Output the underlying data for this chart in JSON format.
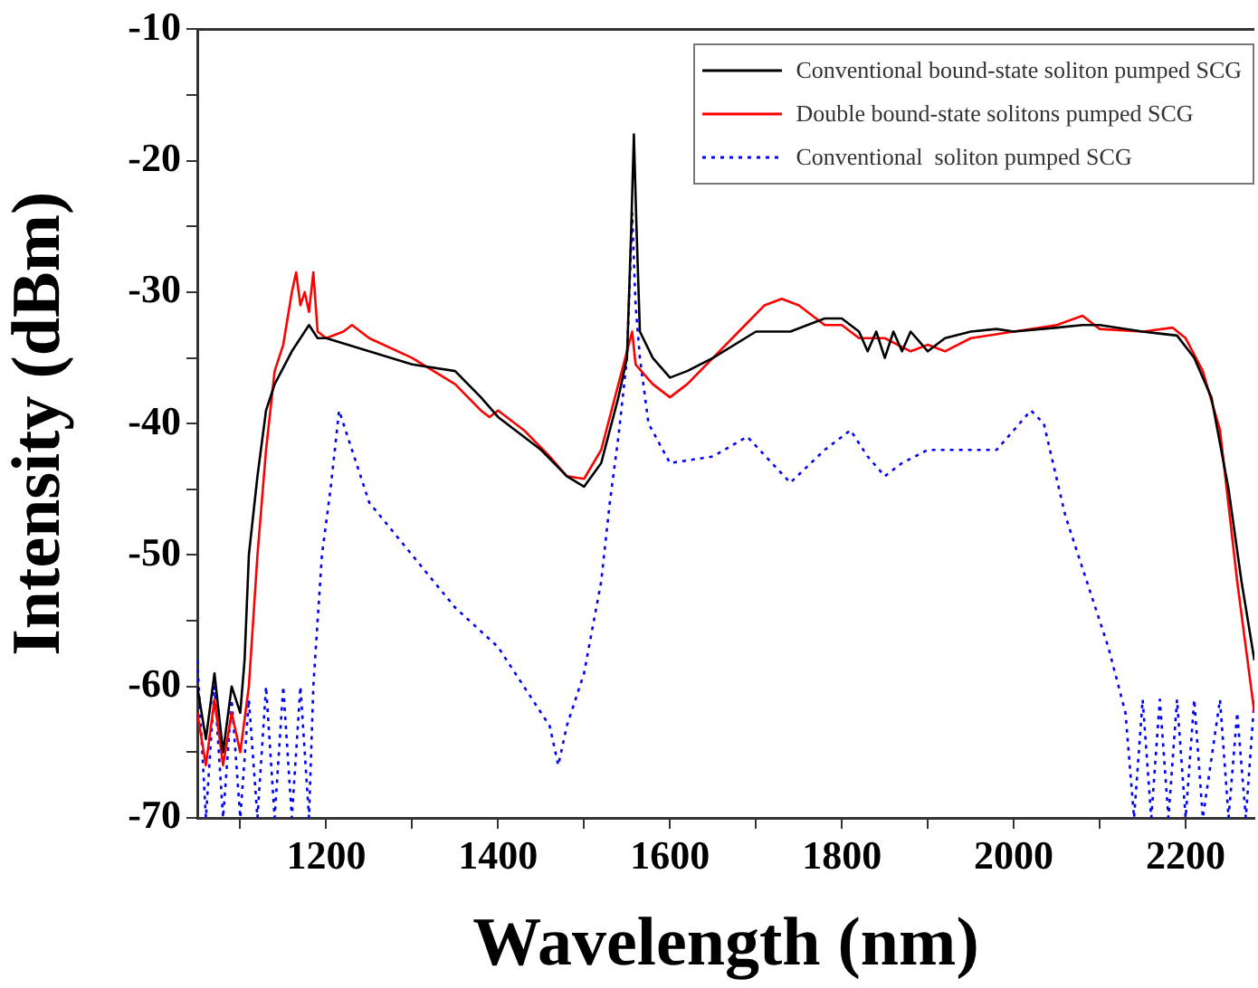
{
  "chart_data": {
    "type": "line",
    "xlabel": "Wavelength (nm)",
    "ylabel": "Intensity (dBm)",
    "xlim": [
      1050,
      2280
    ],
    "ylim": [
      -70,
      -10
    ],
    "xticks": [
      {
        "value": 1100,
        "label": null
      },
      1200,
      {
        "value": 1300,
        "label": null
      },
      1400,
      {
        "value": 1500,
        "label": null
      },
      1600,
      {
        "value": 1700,
        "label": null
      },
      1800,
      {
        "value": 1900,
        "label": null
      },
      2000,
      {
        "value": 2100,
        "label": null
      },
      2200
    ],
    "yticks": [
      -70,
      {
        "value": -65,
        "label": null
      },
      -60,
      {
        "value": -55,
        "label": null
      },
      -50,
      {
        "value": -45,
        "label": null
      },
      -40,
      {
        "value": -35,
        "label": null
      },
      -30,
      {
        "value": -25,
        "label": null
      },
      -20,
      {
        "value": -15,
        "label": null
      },
      -10
    ],
    "grid": false,
    "legend": "top right",
    "marker": "none",
    "series": [
      {
        "name": "Conventional bound-state soliton pumped SCG",
        "color": "#000000",
        "line_style": "solid",
        "x": [
          1050,
          1060,
          1070,
          1080,
          1090,
          1100,
          1105,
          1110,
          1120,
          1130,
          1140,
          1160,
          1180,
          1190,
          1200,
          1250,
          1300,
          1350,
          1380,
          1400,
          1450,
          1480,
          1500,
          1520,
          1540,
          1550,
          1555,
          1558,
          1561,
          1565,
          1580,
          1600,
          1620,
          1650,
          1700,
          1740,
          1780,
          1800,
          1820,
          1830,
          1840,
          1850,
          1860,
          1870,
          1880,
          1900,
          1920,
          1950,
          1980,
          2000,
          2050,
          2080,
          2100,
          2150,
          2190,
          2210,
          2230,
          2250,
          2265,
          2280
        ],
        "values": [
          -60,
          -64,
          -59,
          -65,
          -60,
          -62,
          -58,
          -50,
          -44,
          -39,
          -37,
          -34.5,
          -32.5,
          -33.5,
          -33.5,
          -34.5,
          -35.5,
          -36,
          -38,
          -39.5,
          -42,
          -44,
          -44.8,
          -43,
          -38,
          -35,
          -25,
          -18,
          -25,
          -33,
          -35,
          -36.5,
          -36,
          -35,
          -33,
          -33,
          -32,
          -32,
          -33,
          -34.5,
          -33,
          -35,
          -33,
          -34.5,
          -33,
          -34.5,
          -33.5,
          -33,
          -32.8,
          -33,
          -32.7,
          -32.5,
          -32.5,
          -33,
          -33.3,
          -35,
          -38,
          -45,
          -52,
          -58
        ]
      },
      {
        "name": "Double bound-state solitons pumped SCG",
        "color": "#ff0000",
        "line_style": "solid",
        "x": [
          1050,
          1060,
          1070,
          1080,
          1090,
          1100,
          1110,
          1120,
          1130,
          1140,
          1150,
          1160,
          1165,
          1170,
          1175,
          1180,
          1185,
          1190,
          1200,
          1220,
          1230,
          1250,
          1300,
          1350,
          1380,
          1390,
          1400,
          1430,
          1460,
          1480,
          1500,
          1520,
          1540,
          1550,
          1556,
          1560,
          1580,
          1600,
          1620,
          1650,
          1680,
          1710,
          1730,
          1750,
          1780,
          1800,
          1820,
          1850,
          1880,
          1900,
          1920,
          1950,
          2000,
          2050,
          2080,
          2100,
          2150,
          2185,
          2200,
          2220,
          2240,
          2260,
          2280
        ],
        "values": [
          -62,
          -66,
          -61,
          -66,
          -62,
          -65,
          -60,
          -50,
          -42,
          -36,
          -34,
          -30,
          -28.5,
          -31,
          -30,
          -31.5,
          -28.5,
          -33,
          -33.5,
          -33,
          -32.5,
          -33.5,
          -35,
          -37,
          -39,
          -39.5,
          -39,
          -40.5,
          -42.5,
          -44,
          -44.2,
          -42,
          -37,
          -34.5,
          -33,
          -35.5,
          -37,
          -38,
          -37,
          -35,
          -33,
          -31,
          -30.5,
          -31,
          -32.5,
          -32.5,
          -33.5,
          -33.5,
          -34.5,
          -34,
          -34.5,
          -33.5,
          -33,
          -32.5,
          -31.8,
          -32.8,
          -33,
          -32.7,
          -33.5,
          -36,
          -40.5,
          -52,
          -62
        ]
      },
      {
        "name": "Conventional  soliton pumped SCG",
        "color": "#0000ff",
        "line_style": "dotted",
        "x": [
          1050,
          1060,
          1070,
          1080,
          1090,
          1100,
          1110,
          1120,
          1130,
          1140,
          1150,
          1160,
          1170,
          1180,
          1185,
          1195,
          1205,
          1215,
          1230,
          1250,
          1300,
          1350,
          1400,
          1430,
          1460,
          1470,
          1480,
          1500,
          1520,
          1530,
          1540,
          1550,
          1556,
          1560,
          1565,
          1575,
          1600,
          1650,
          1690,
          1740,
          1780,
          1810,
          1830,
          1850,
          1870,
          1900,
          1950,
          1980,
          2020,
          2035,
          2060,
          2090,
          2110,
          2130,
          2140,
          2150,
          2160,
          2170,
          2180,
          2190,
          2200,
          2210,
          2220,
          2240,
          2250,
          2260,
          2270,
          2280
        ],
        "values": [
          -58,
          -70,
          -60,
          -70,
          -61,
          -70,
          -61,
          -70,
          -60,
          -70,
          -60,
          -70,
          -60,
          -70,
          -60,
          -50,
          -45,
          -39,
          -42,
          -46,
          -50,
          -54,
          -57,
          -60,
          -63,
          -66,
          -63,
          -59,
          -52,
          -46,
          -41,
          -35,
          -24,
          -31,
          -35,
          -40,
          -43,
          -42.5,
          -41,
          -44.5,
          -42,
          -40.5,
          -42.5,
          -44,
          -43,
          -42,
          -42,
          -42,
          -39,
          -40,
          -47,
          -53,
          -57,
          -62,
          -70,
          -61,
          -70,
          -61,
          -70,
          -61,
          -70,
          -61,
          -70,
          -61,
          -70,
          -62,
          -70,
          -61
        ]
      }
    ]
  }
}
